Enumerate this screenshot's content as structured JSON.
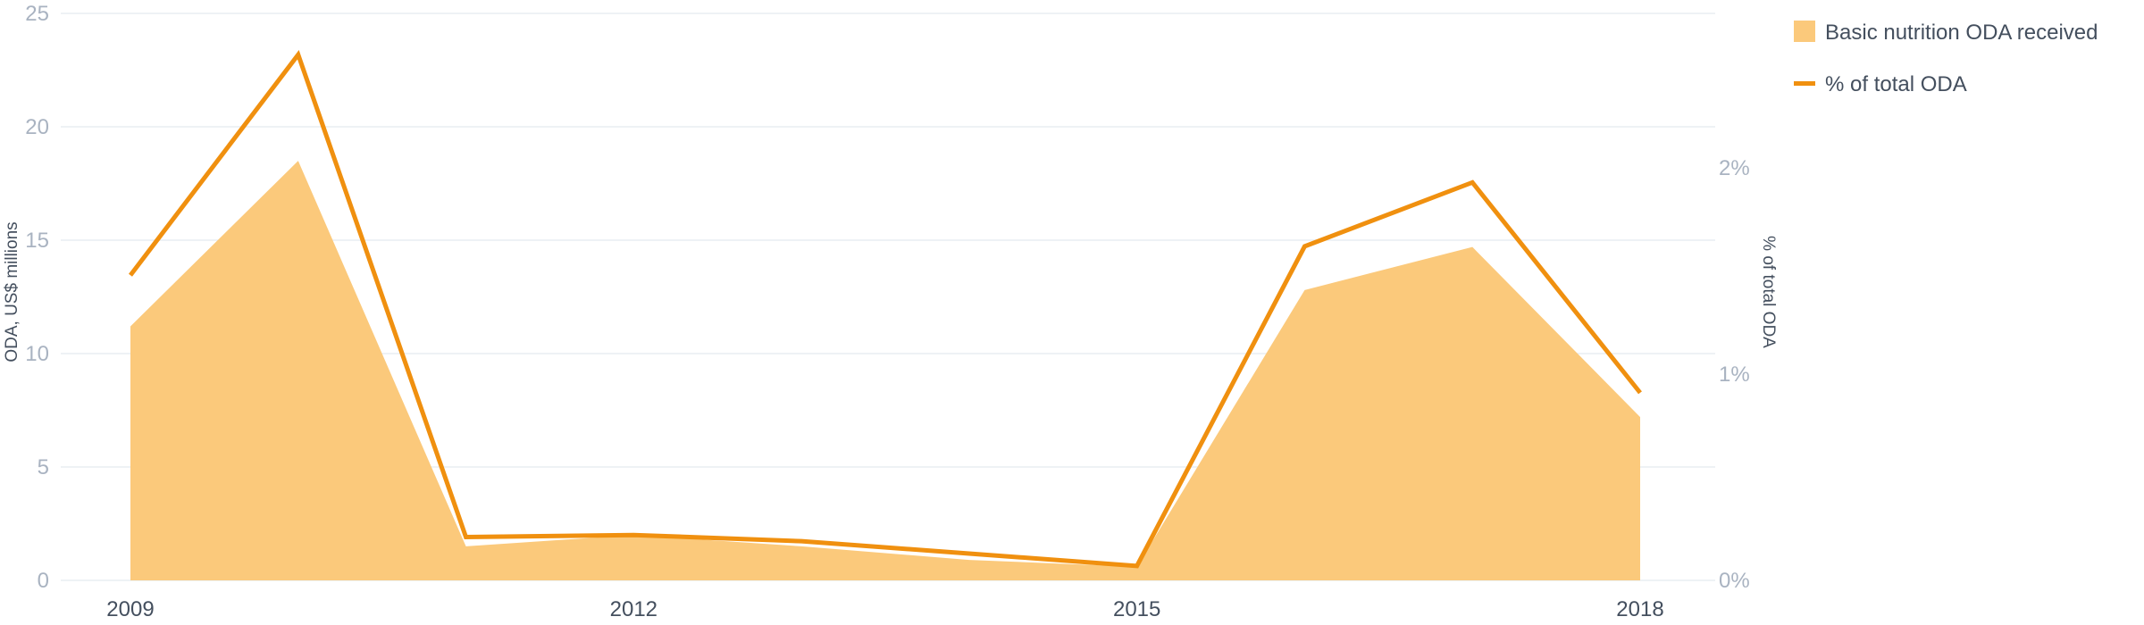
{
  "chart_data": {
    "type": "area",
    "x": [
      2009,
      2010,
      2011,
      2012,
      2013,
      2014,
      2015,
      2016,
      2017,
      2018
    ],
    "xticks": [
      "2009",
      "2012",
      "2015",
      "2018"
    ],
    "series": [
      {
        "name": "Basic nutrition ODA received",
        "type": "area",
        "axis": "left",
        "color": "#fbc97b",
        "values": [
          11.2,
          18.5,
          1.5,
          2.0,
          1.5,
          0.9,
          0.6,
          12.8,
          14.7,
          7.2
        ]
      },
      {
        "name": "% of total ODA",
        "type": "line",
        "axis": "right",
        "color": "#f0900f",
        "values": [
          1.48,
          2.55,
          0.21,
          0.22,
          0.19,
          0.13,
          0.07,
          1.62,
          1.93,
          0.91
        ]
      }
    ],
    "yleft": {
      "label": "ODA, US$ millions",
      "ylim": [
        0,
        25
      ],
      "ticks": [
        "0",
        "5",
        "10",
        "15",
        "20",
        "25"
      ]
    },
    "yright": {
      "label": "% of total ODA",
      "ylim": [
        0,
        2.75
      ],
      "ticks": [
        "0%",
        "1%",
        "2%"
      ]
    },
    "legend": {
      "position": "top-right",
      "items": [
        "Basic nutrition ODA received",
        "% of total ODA"
      ]
    },
    "grid": true
  }
}
